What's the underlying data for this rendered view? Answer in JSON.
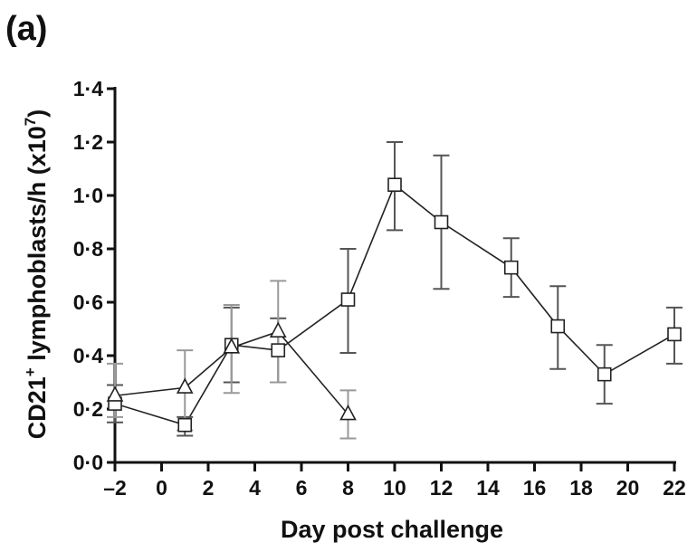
{
  "panel_label": "(a)",
  "chart_data": {
    "type": "line",
    "xlabel": "Day post challenge",
    "ylabel_main": "CD21",
    "ylabel_sup": "+",
    "ylabel_rest": " lymphoblasts/h (x10",
    "ylabel_exp": "7",
    "ylabel_close": ")",
    "xlim": [
      -2,
      22
    ],
    "ylim": [
      0,
      1.4
    ],
    "xticks": [
      -2,
      0,
      2,
      4,
      6,
      8,
      10,
      12,
      14,
      16,
      18,
      20,
      22
    ],
    "xtick_labels": [
      "–2",
      "0",
      "2",
      "4",
      "6",
      "8",
      "10",
      "12",
      "14",
      "16",
      "18",
      "20",
      "22"
    ],
    "yticks": [
      0,
      0.2,
      0.4,
      0.6,
      0.8,
      1.0,
      1.2,
      1.4
    ],
    "ytick_labels": [
      "0·0",
      "0·2",
      "0·4",
      "0·6",
      "0·8",
      "1·0",
      "1·2",
      "1·4"
    ],
    "series": [
      {
        "marker": "square",
        "error_color": "#555555",
        "points": [
          {
            "x": -2,
            "y": 0.22,
            "lo": 0.15,
            "hi": 0.29
          },
          {
            "x": 1,
            "y": 0.14,
            "lo": 0.1,
            "hi": 0.17
          },
          {
            "x": 3,
            "y": 0.44,
            "lo": 0.3,
            "hi": 0.58
          },
          {
            "x": 5,
            "y": 0.42,
            "lo": 0.3,
            "hi": 0.54
          },
          {
            "x": 8,
            "y": 0.61,
            "lo": 0.41,
            "hi": 0.8
          },
          {
            "x": 10,
            "y": 1.04,
            "lo": 0.87,
            "hi": 1.2
          },
          {
            "x": 12,
            "y": 0.9,
            "lo": 0.65,
            "hi": 1.15
          },
          {
            "x": 15,
            "y": 0.73,
            "lo": 0.62,
            "hi": 0.84
          },
          {
            "x": 17,
            "y": 0.51,
            "lo": 0.35,
            "hi": 0.66
          },
          {
            "x": 19,
            "y": 0.33,
            "lo": 0.22,
            "hi": 0.44
          },
          {
            "x": 22,
            "y": 0.48,
            "lo": 0.37,
            "hi": 0.58
          }
        ]
      },
      {
        "marker": "triangle",
        "error_color": "#999999",
        "points": [
          {
            "x": -2,
            "y": 0.25,
            "lo": 0.17,
            "hi": 0.37
          },
          {
            "x": 1,
            "y": 0.28,
            "lo": 0.12,
            "hi": 0.42
          },
          {
            "x": 3,
            "y": 0.43,
            "lo": 0.26,
            "hi": 0.59
          },
          {
            "x": 5,
            "y": 0.49,
            "lo": 0.3,
            "hi": 0.68
          },
          {
            "x": 8,
            "y": 0.18,
            "lo": 0.09,
            "hi": 0.27
          }
        ]
      }
    ]
  }
}
